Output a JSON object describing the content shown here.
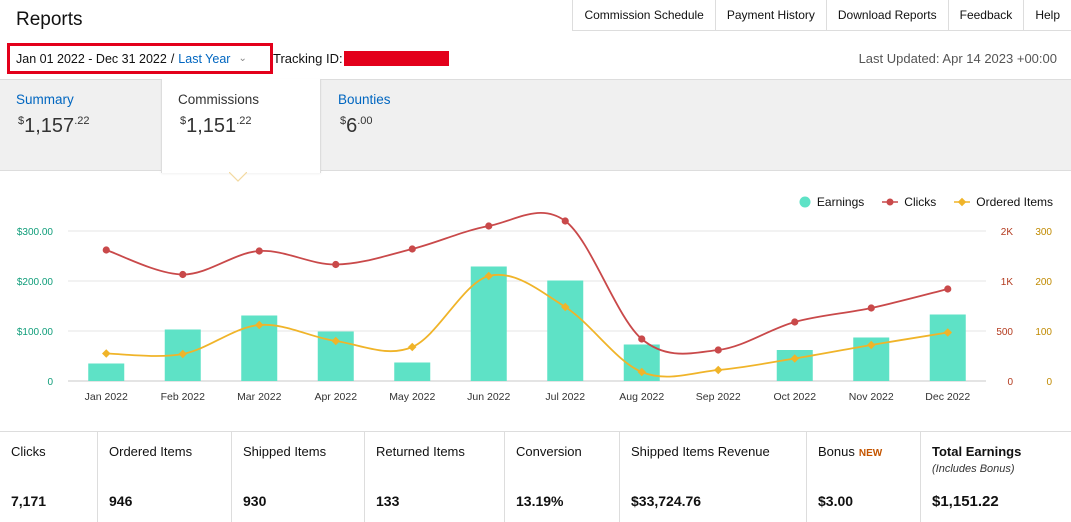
{
  "header": {
    "title": "Reports",
    "nav": [
      "Commission Schedule",
      "Payment History",
      "Download Reports",
      "Feedback",
      "Help"
    ]
  },
  "filters": {
    "date_range": "Jan 01 2022 - Dec 31 2022",
    "separator": "/",
    "preset": "Last Year",
    "tracking_label": "Tracking ID:",
    "last_updated": "Last Updated: Apr 14 2023 +00:00"
  },
  "tabs": [
    {
      "label": "Summary",
      "currency": "$",
      "whole": "1,157",
      "cents": ".22"
    },
    {
      "label": "Commissions",
      "currency": "$",
      "whole": "1,151",
      "cents": ".22"
    },
    {
      "label": "Bounties",
      "currency": "$",
      "whole": "6",
      "cents": ".00"
    }
  ],
  "legend": {
    "earnings": "Earnings",
    "clicks": "Clicks",
    "ordered": "Ordered Items"
  },
  "colors": {
    "earnings": "#5ee2c6",
    "clicks": "#c9494a",
    "ordered": "#f0b429",
    "left_axis": "#0f9d7a",
    "mid_axis": "#b33a1e",
    "right_axis": "#c08a00",
    "link": "#0066c0",
    "redaction": "#e3001b"
  },
  "chart_data": {
    "type": "bar",
    "categories": [
      "Jan 2022",
      "Feb 2022",
      "Mar 2022",
      "Apr 2022",
      "May 2022",
      "Jun 2022",
      "Jul 2022",
      "Aug 2022",
      "Sep 2022",
      "Oct 2022",
      "Nov 2022",
      "Dec 2022"
    ],
    "series": [
      {
        "name": "Earnings",
        "axis": "left",
        "kind": "bar",
        "values": [
          35,
          103,
          131,
          99,
          37,
          229,
          201,
          73,
          0,
          62,
          87,
          133
        ]
      },
      {
        "name": "Clicks",
        "axis": "middle",
        "kind": "line",
        "values": [
          1620,
          1130,
          1600,
          1330,
          1640,
          2100,
          2200,
          420,
          310,
          590,
          730,
          920
        ]
      },
      {
        "name": "Ordered Items",
        "axis": "right",
        "kind": "line",
        "values": [
          55,
          54,
          112,
          80,
          68,
          210,
          148,
          18,
          22,
          45,
          72,
          97
        ]
      }
    ],
    "axes": {
      "left": {
        "min": 0,
        "max": 300,
        "ticks": [
          "0",
          "$100.00",
          "$200.00",
          "$300.00"
        ]
      },
      "middle": {
        "min": 0,
        "max": 3000,
        "ticks": [
          "0",
          "500",
          "1K",
          "2K"
        ]
      },
      "right": {
        "min": 0,
        "max": 300,
        "ticks": [
          "0",
          "100",
          "200",
          "300"
        ]
      }
    },
    "grid": true,
    "legend_position": "top-right"
  },
  "stats": [
    {
      "label": "Clicks",
      "value": "7,171"
    },
    {
      "label": "Ordered Items",
      "value": "946"
    },
    {
      "label": "Shipped Items",
      "value": "930"
    },
    {
      "label": "Returned Items",
      "value": "133"
    },
    {
      "label": "Conversion",
      "value": "13.19%"
    },
    {
      "label": "Shipped Items Revenue",
      "value": "$33,724.76"
    },
    {
      "label": "Bonus",
      "badge": "NEW",
      "value": "$3.00"
    },
    {
      "label": "Total Earnings",
      "sub": "(Includes Bonus)",
      "value": "$1,151.22"
    }
  ]
}
